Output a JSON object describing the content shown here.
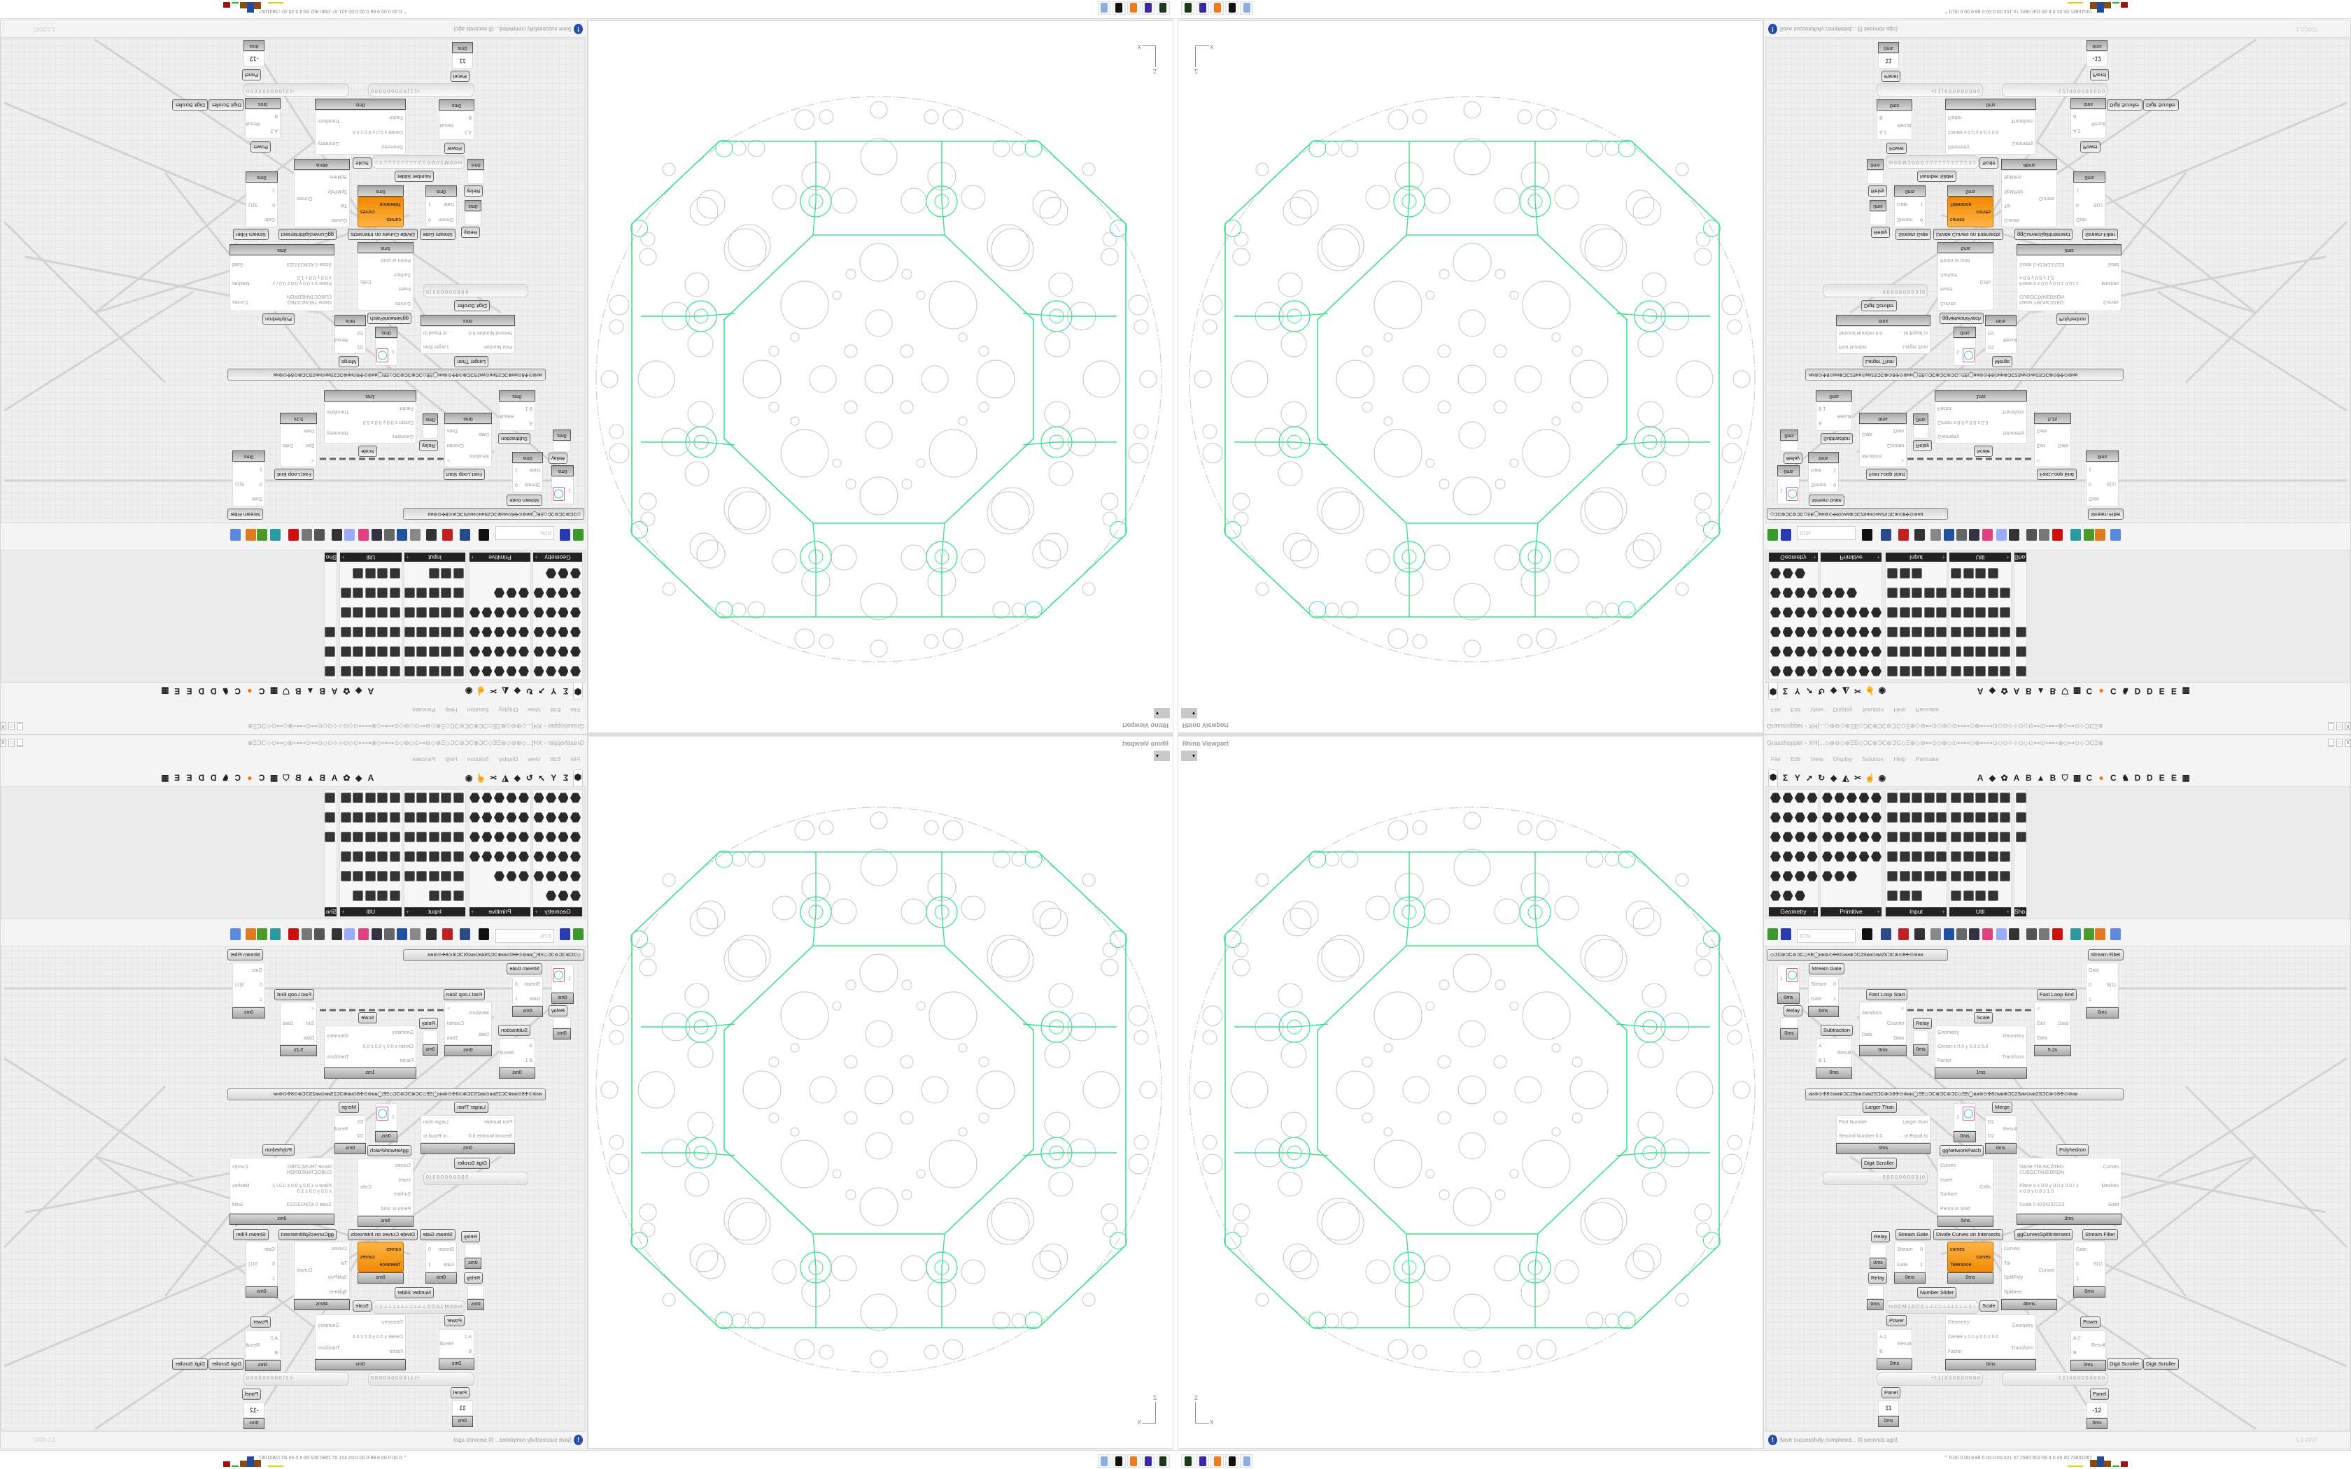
{
  "viewport": {
    "title": "Rhino Viewport",
    "dropdown_icon": "caret-down-icon",
    "axis_labels": {
      "vertical": "Z",
      "horizontal": "X"
    },
    "colors": {
      "network": "#3ee08f",
      "circles": "#c4c4c4",
      "outline": "#cfcfcf"
    }
  },
  "grasshopper": {
    "title": "Grasshopper - XH[...◇⊕⊖◇⊗ΞΕ◇ϽϹ⊗ϽϹ⊚ϽϹ◇Ξ⊗◇⊖⊷⊙◇⊕◇⊙⊷⊷◇⊗⊷⊶⊙◇⊙⊹⊹⊙◇⊙⊷⊙⊶⊷⊗◇⊶⊙⊹ϽϹΞ⊗⊙ϽϹ...",
    "window_buttons": [
      "_",
      "□",
      "X"
    ],
    "menu": [
      "File",
      "Edit",
      "View",
      "Display",
      "Solution",
      "Help",
      "Pancake"
    ],
    "tab_icons": [
      "params-hexagon-icon",
      "maths-sigma-icon",
      "sets-branch-icon",
      "vector-arrow-icon",
      "curve-loop-icon",
      "surface-leaf-icon",
      "mesh-icon",
      "intersect-scissors-icon",
      "transform-hand-icon",
      "display-eye-icon"
    ],
    "tab_letters": [
      "A",
      "◆",
      "✿",
      "A",
      "B",
      "▲",
      "B",
      "⛉",
      "▦",
      "C",
      "●",
      "C",
      "♞",
      "D",
      "D",
      "E",
      "E",
      "▦"
    ],
    "accent_orange": "#f08a00",
    "palette": {
      "panels": [
        {
          "label": "Geometry",
          "shape": "hex",
          "count": 23
        },
        {
          "label": "Primitive",
          "shape": "hex",
          "count": 23
        },
        {
          "label": "Input",
          "shape": "square",
          "count": 28
        },
        {
          "label": "Util",
          "shape": "square",
          "count": 29
        },
        {
          "label": "Sho...",
          "shape": "square",
          "count": 3
        }
      ],
      "plus": "+"
    },
    "toolbar": {
      "zoom_value": "87%",
      "icons": [
        "new-file-icon",
        "save-icon",
        "zoom-extents-icon",
        "preview-eye-icon",
        "sketch-pen-icon",
        "clip-icon",
        "email-icon",
        "gha-icon",
        "image-icon",
        "search-icon",
        "package-icon",
        "bulb-icon",
        "wire-icon",
        "bell-icon",
        "chain-icon",
        "red-gem-icon",
        "teal-icon",
        "green-icon",
        "sphere-icon",
        "blue-sphere-icon"
      ]
    },
    "groups": [
      "◇ϽϹ⊗ϽϹ⊚ϽϹ◇ΞΕ◯ᴎᴎ⊚⊙✣8⊙ᴎᴎ⊗ϽϹ2Sᴎᴎ⊙ᴎᴎ2SϽϹ⊗⊙8✣⊙⊚ᴎᴎ",
      "ᴎᴎ⊚⊙✣8⊙ᴎᴎ⊗ϽϹ2Sᴎᴎ⊙ᴎᴎ2SϽϹ⊗⊙8✣⊙⊚ᴎᴎ◯ΞΕ◇ϽϹ⊗ϽϹ⊚ϽϹ◇ΞΕ◯ᴎᴎ⊚⊙✣8⊙ᴎᴎ⊗ϽϹ2Sᴎᴎ⊙ᴎᴎ2SϽϹ⊗⊙8✣⊙⊚ᴎᴎ"
    ],
    "nodes": [
      {
        "label": "Stream Gate",
        "inputs": [
          "Stream",
          "Gate"
        ],
        "outputs": [
          "0",
          "1"
        ],
        "time": "0ms"
      },
      {
        "label": "Fast Loop Start",
        "inputs": [
          "Iterations",
          "Data"
        ],
        "outputs": [
          ">",
          "Counter",
          "Data"
        ],
        "time": "0ms"
      },
      {
        "label": "Subtraction",
        "inputs": [
          "A",
          "B 1"
        ],
        "outputs": [
          "Result"
        ],
        "time": "0ms"
      },
      {
        "label": "Relay",
        "inputs": [],
        "outputs": [],
        "time": "0ms"
      },
      {
        "label": "Scale",
        "inputs": [
          "Geometry",
          "Center x 0.0 y 0.0 z 0.0",
          "Factor"
        ],
        "outputs": [
          "Geometry",
          "Transform"
        ],
        "time": "1ms"
      },
      {
        "label": "Fast Loop End",
        "inputs": [
          "<",
          "Exit",
          "Data"
        ],
        "outputs": [
          "Data"
        ],
        "time": "5.2s"
      },
      {
        "label": "Stream Filter",
        "inputs": [
          "Gate",
          "0",
          "1"
        ],
        "outputs": [
          "S(1)"
        ],
        "time": "0ms"
      },
      {
        "label": "Larger Than",
        "inputs": [
          "First Number",
          "Second Number 0.0"
        ],
        "outputs": [
          "Larger than",
          "... or Equal to"
        ],
        "time": "0ms"
      },
      {
        "label": "Merge",
        "inputs": [
          "D1",
          "D2"
        ],
        "outputs": [
          "Result"
        ],
        "time": "0ms"
      },
      {
        "label": "ggNetworkPatch",
        "inputs": [
          "Curves",
          "Invert",
          "Surface",
          "Perim or Void"
        ],
        "outputs": [
          "Cells"
        ],
        "time": "5ms"
      },
      {
        "label": "Polyhedron",
        "inputs": [
          "Name TRUNCATED CUBOCTAHEDRON",
          "Plane  o x 0.0 y 0.0 z 0.0 / z x 0.0 y 0.0 z 1.0",
          "Scale 0.4234237223"
        ],
        "outputs": [
          "Curves",
          "Meshes",
          "Solid"
        ],
        "time": "3ms"
      },
      {
        "label": "Stream Gate",
        "inputs": [
          "Stream",
          "Gate"
        ],
        "outputs": [
          "0",
          "1"
        ],
        "time": "0ms"
      },
      {
        "label": "Divide Curves on Intersects",
        "inputs": [
          "curves",
          "Tolerance"
        ],
        "outputs": [
          "curves"
        ],
        "time": "0ms"
      },
      {
        "label": "ggCurvesSplitIntersect",
        "inputs": [
          "Curves",
          "Tol",
          "SplitPoly",
          "Splitters"
        ],
        "outputs": [
          "Curves"
        ],
        "time": "46ms"
      },
      {
        "label": "Stream Filter",
        "inputs": [
          "Gate",
          "0",
          "1"
        ],
        "outputs": [
          "S(1)"
        ],
        "time": "0ms"
      },
      {
        "label": "Relay",
        "inputs": [],
        "outputs": [],
        "time": "0ms"
      },
      {
        "label": "Relay",
        "inputs": [],
        "outputs": [],
        "time": "0ms"
      },
      {
        "label": "Relay",
        "inputs": [],
        "outputs": [],
        "time": "0ms"
      },
      {
        "label": "Scale",
        "inputs": [
          "Geometry",
          "Center x 0.0 y 0.0 z 0.0",
          "Factor"
        ],
        "outputs": [
          "Geometry",
          "Transform"
        ],
        "time": "0ms"
      },
      {
        "label": "Power",
        "inputs": [
          "A 2",
          "B"
        ],
        "outputs": [
          "Result"
        ],
        "time": "0ms"
      },
      {
        "label": "Power",
        "inputs": [
          "A 2",
          "B"
        ],
        "outputs": [
          "Result"
        ],
        "time": "0ms"
      },
      {
        "label": "",
        "inputs": [
          "1"
        ],
        "outputs": [],
        "time": "0ms"
      },
      {
        "label": "",
        "inputs": [
          "1"
        ],
        "outputs": [],
        "time": "0ms"
      }
    ],
    "sliders": [
      {
        "label": "Digit Scroller",
        "value": "· 0 0 0 0 0 0 0 0 3 | 0"
      },
      {
        "label": "Number Slider",
        "value": "m 0.0  M 1.0  D 0   ⊥⊥⊥⊥⊥⊥⊥⊥⊥⊥ 1 ○"
      },
      {
        "label": "Digit Scroller",
        "value": "+1 1 | 0 0 0 0 0 0 0 0 0"
      },
      {
        "label": "Digit Scroller",
        "value": "-1 2 | 0 0 0 0 0 0 0 0 0"
      }
    ],
    "panels": [
      {
        "label": "Panel",
        "value": "11",
        "time": "0ms"
      },
      {
        "label": "Panel",
        "value": "-12",
        "time": "0ms"
      }
    ],
    "status": {
      "icon": "info-icon",
      "message": "Save successfully completed... (0 seconds ago)",
      "version": "1.0.0007"
    }
  },
  "taskbar": {
    "apps": [
      "terminal-icon",
      "floppy-64-icon",
      "firefox-icon",
      "inkscape-icon",
      "calculator-icon"
    ],
    "stats": "⌃  0.00 0.00  9   88  0.00 0.00  421  37  2580  902  66  4.5  45  40  73841067",
    "bar_colors": [
      "#d8d800",
      "#8b4a10",
      "#1f4b99",
      "#8b4a10",
      "#22bb22",
      "#a01010"
    ]
  }
}
